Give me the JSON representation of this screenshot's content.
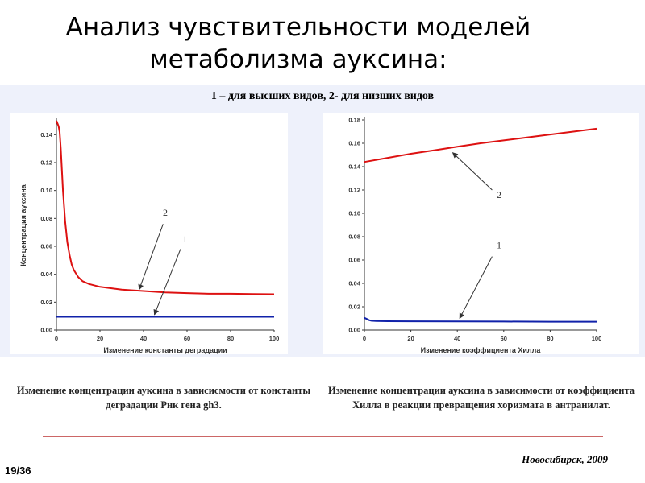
{
  "slide": {
    "title": "Анализ чувствительности моделей метаболизма ауксина:",
    "legend_note": "1 – для высших видов, 2- для низших видов",
    "footer_city": "Новосибирск, 2009",
    "page_number": "19/36"
  },
  "colors": {
    "series_2": "#dd1111",
    "series_1": "#1122aa",
    "axis": "#333333",
    "divider": "#cc6666"
  },
  "chart_data": [
    {
      "type": "line",
      "xlabel": "Изменение константы деградации",
      "ylabel": "Концентрация ауксина",
      "xlim": [
        0,
        100
      ],
      "ylim": [
        0,
        0.15
      ],
      "xticks": [
        "0",
        "20",
        "40",
        "60",
        "80",
        "100"
      ],
      "yticks": [
        "0.00",
        "0.02",
        "0.04",
        "0.06",
        "0.08",
        "0.10",
        "0.12",
        "0.14"
      ],
      "grid": false,
      "series": [
        {
          "name": "2",
          "color": "#dd1111",
          "x": [
            0,
            0.5,
            1,
            1.5,
            2,
            3,
            4,
            5,
            6,
            7,
            8,
            10,
            12,
            15,
            20,
            25,
            30,
            40,
            50,
            60,
            70,
            80,
            90,
            100
          ],
          "y": [
            0.15,
            0.148,
            0.146,
            0.142,
            0.13,
            0.1,
            0.078,
            0.063,
            0.054,
            0.047,
            0.043,
            0.038,
            0.035,
            0.033,
            0.031,
            0.03,
            0.029,
            0.028,
            0.027,
            0.0265,
            0.026,
            0.026,
            0.0258,
            0.0257
          ]
        },
        {
          "name": "1",
          "color": "#1122aa",
          "x": [
            0,
            100
          ],
          "y": [
            0.0095,
            0.0095
          ]
        }
      ],
      "annotations": [
        {
          "text": "2",
          "label_x": 50,
          "label_y": 0.082,
          "arrow_from": [
            49,
            0.076
          ],
          "arrow_to": [
            38,
            0.029
          ]
        },
        {
          "text": "1",
          "label_x": 59,
          "label_y": 0.063,
          "arrow_from": [
            57,
            0.058
          ],
          "arrow_to": [
            45,
            0.011
          ]
        }
      ],
      "caption": "Изменение концентрации ауксина в зависисмости от константы деградации Рнк гена gh3."
    },
    {
      "type": "line",
      "xlabel": "Изменение коэффициента Хилла",
      "ylabel": "",
      "xlim": [
        0,
        100
      ],
      "ylim": [
        0,
        0.18
      ],
      "xticks": [
        "0",
        "20",
        "40",
        "60",
        "80",
        "100"
      ],
      "yticks": [
        "0.00",
        "0.02",
        "0.04",
        "0.06",
        "0.08",
        "0.10",
        "0.12",
        "0.14",
        "0.16",
        "0.18"
      ],
      "grid": false,
      "series": [
        {
          "name": "2",
          "color": "#dd1111",
          "x": [
            0,
            10,
            20,
            30,
            40,
            50,
            60,
            70,
            80,
            90,
            100
          ],
          "y": [
            0.144,
            0.1475,
            0.151,
            0.154,
            0.157,
            0.16,
            0.1625,
            0.165,
            0.1675,
            0.17,
            0.1725
          ]
        },
        {
          "name": "1",
          "color": "#1122aa",
          "x": [
            0,
            1,
            2,
            3,
            5,
            10,
            20,
            40,
            60,
            80,
            100
          ],
          "y": [
            0.0105,
            0.0095,
            0.0085,
            0.008,
            0.0078,
            0.0076,
            0.0075,
            0.0074,
            0.0073,
            0.0072,
            0.0072
          ]
        }
      ],
      "annotations": [
        {
          "text": "2",
          "label_x": 58,
          "label_y": 0.113,
          "arrow_from": [
            55,
            0.12
          ],
          "arrow_to": [
            38,
            0.152
          ]
        },
        {
          "text": "1",
          "label_x": 58,
          "label_y": 0.07,
          "arrow_from": [
            55,
            0.063
          ],
          "arrow_to": [
            41,
            0.01
          ]
        }
      ],
      "caption": "Изменение концентрации ауксина в зависимости от коэффициента Хилла в реакции превращения хоризмата в антранилат."
    }
  ]
}
